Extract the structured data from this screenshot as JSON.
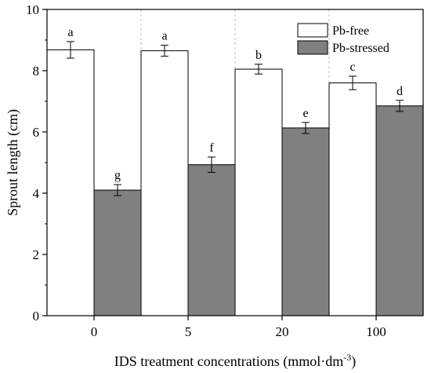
{
  "chart_data": {
    "type": "bar",
    "categories": [
      "0",
      "5",
      "20",
      "100"
    ],
    "xlabel": "IDS treatment concentrations (mmol·dm",
    "xlabel_superscript": "-3",
    "xlabel_close": ")",
    "ylabel": "Sprout length (cm)",
    "ylim": [
      0,
      10
    ],
    "yticks": [
      0,
      2,
      4,
      6,
      8,
      10
    ],
    "grid": "dashed vertical separators between groups",
    "legend_position": "top-right",
    "series": [
      {
        "name": "Pb-free",
        "fill": "#ffffff",
        "values": [
          8.68,
          8.65,
          8.05,
          7.6
        ],
        "errors": [
          0.27,
          0.18,
          0.16,
          0.22
        ],
        "letters": [
          "a",
          "a",
          "b",
          "c"
        ]
      },
      {
        "name": "Pb-stressed",
        "fill": "#808080",
        "values": [
          4.1,
          4.93,
          6.13,
          6.85
        ],
        "errors": [
          0.18,
          0.25,
          0.18,
          0.18
        ],
        "letters": [
          "g",
          "f",
          "e",
          "d"
        ]
      }
    ]
  }
}
